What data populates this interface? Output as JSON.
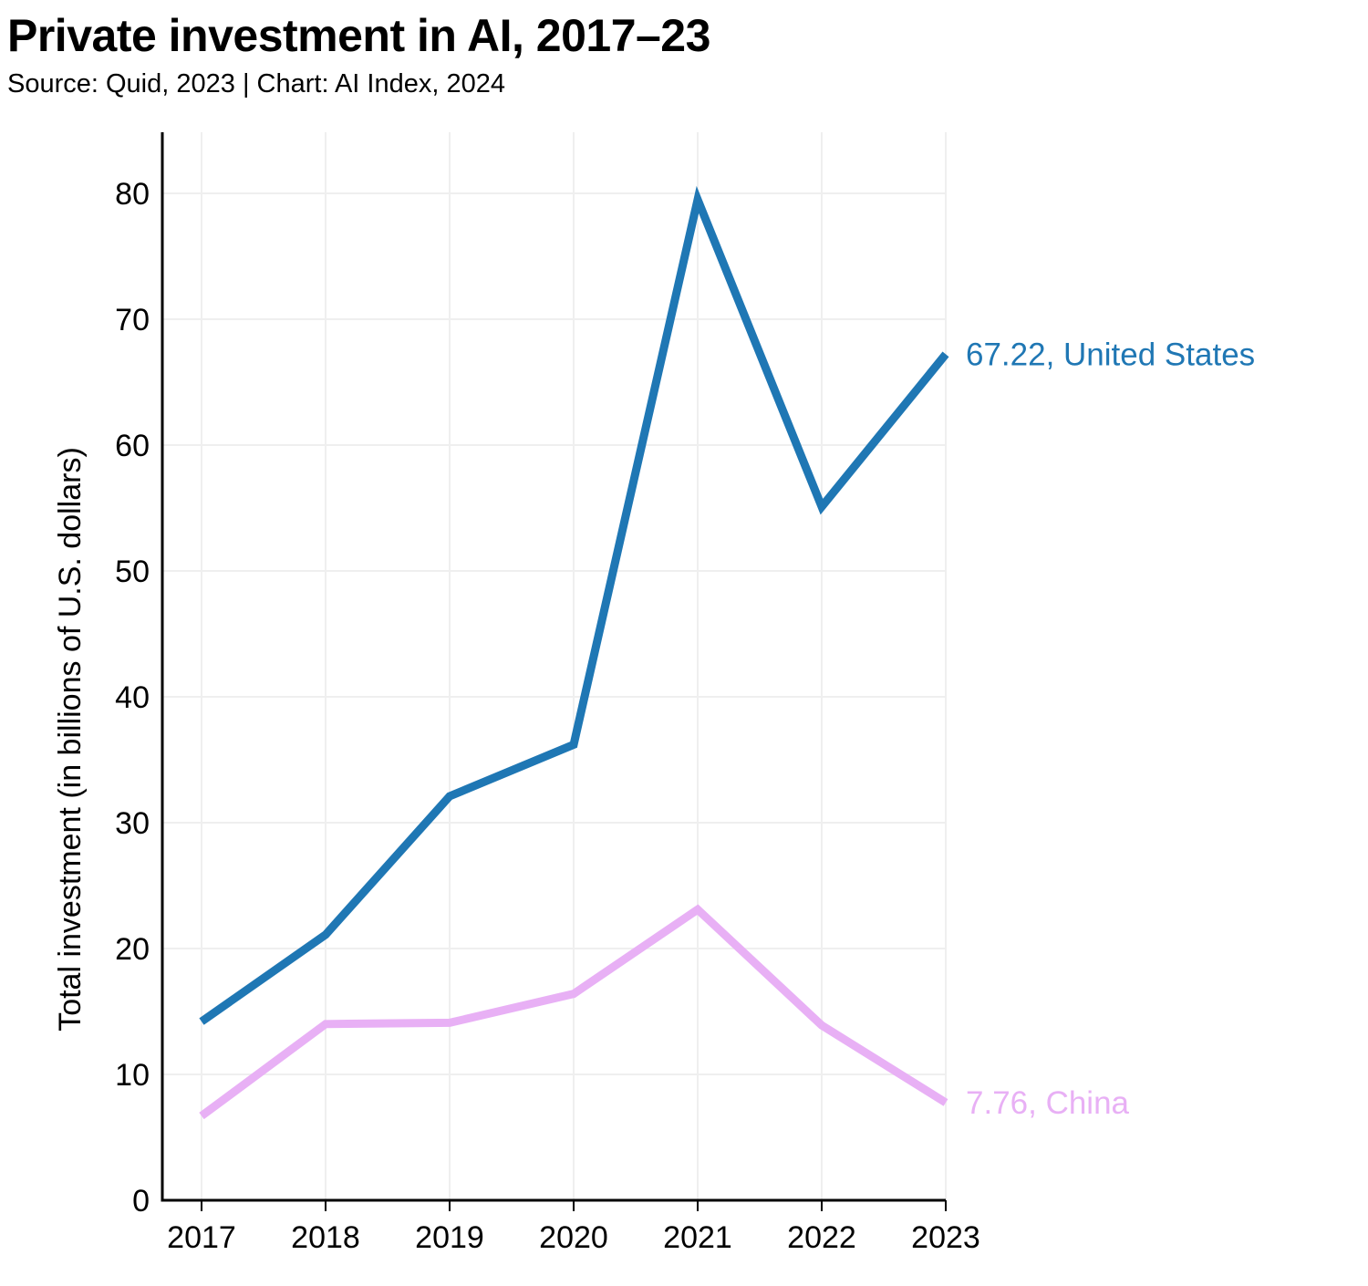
{
  "header": {
    "title": "Private investment in AI, 2017–23",
    "subtitle": "Source: Quid, 2023 | Chart: AI Index, 2024"
  },
  "chart_data": {
    "type": "line",
    "title": "Private investment in AI, 2017–23",
    "subtitle": "Source: Quid, 2023 | Chart: AI Index, 2024",
    "xlabel": "",
    "ylabel": "Total investment (in billions of U.S. dollars)",
    "x": [
      "2017",
      "2018",
      "2019",
      "2020",
      "2021",
      "2022",
      "2023"
    ],
    "ylim": [
      0,
      85
    ],
    "yticks": [
      0,
      10,
      20,
      30,
      40,
      50,
      60,
      70,
      80
    ],
    "grid": true,
    "legend": "end-of-line labels",
    "series": [
      {
        "name": "United States",
        "color": "#1f77b4",
        "values": [
          14.2,
          21.1,
          32.1,
          36.2,
          79.5,
          55.1,
          67.22
        ],
        "end_label": "67.22, United States"
      },
      {
        "name": "China",
        "color": "#e8b0f5",
        "values": [
          6.7,
          14.0,
          14.1,
          16.4,
          23.1,
          13.9,
          7.76
        ],
        "end_label": "7.76, China"
      }
    ]
  }
}
